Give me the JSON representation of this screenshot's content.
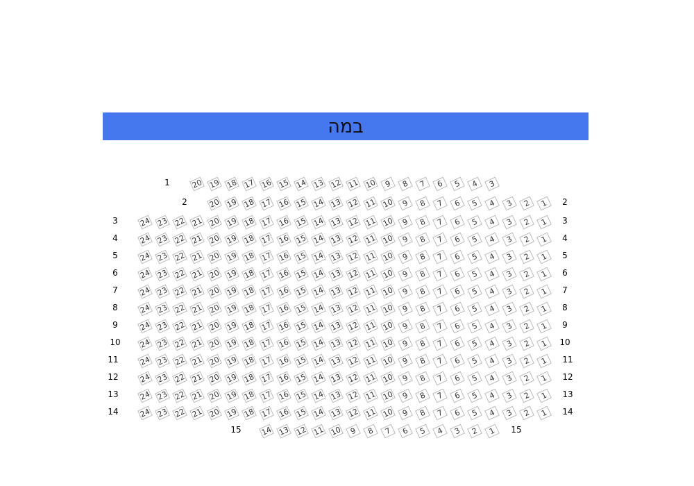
{
  "stage": {
    "label": "במה",
    "color": "#4577EE"
  },
  "rows": [
    {
      "left_label": "1",
      "right_label": "",
      "seats": [
        "20",
        "19",
        "18",
        "17",
        "16",
        "15",
        "14",
        "13",
        "12",
        "11",
        "10",
        "9",
        "8",
        "7",
        "6",
        "5",
        "4",
        "3"
      ]
    },
    {
      "left_label": "2",
      "right_label": "2",
      "seats": [
        "20",
        "19",
        "18",
        "17",
        "16",
        "15",
        "14",
        "13",
        "12",
        "11",
        "10",
        "9",
        "8",
        "7",
        "6",
        "5",
        "4",
        "3",
        "2",
        "1"
      ]
    },
    {
      "left_label": "3",
      "right_label": "3",
      "seats": [
        "24",
        "23",
        "22",
        "21",
        "20",
        "19",
        "18",
        "17",
        "16",
        "15",
        "14",
        "13",
        "12",
        "11",
        "10",
        "9",
        "8",
        "7",
        "6",
        "5",
        "4",
        "3",
        "2",
        "1"
      ]
    },
    {
      "left_label": "4",
      "right_label": "4",
      "seats": [
        "24",
        "23",
        "22",
        "21",
        "20",
        "19",
        "18",
        "17",
        "16",
        "15",
        "14",
        "13",
        "12",
        "11",
        "10",
        "9",
        "8",
        "7",
        "6",
        "5",
        "4",
        "3",
        "2",
        "1"
      ]
    },
    {
      "left_label": "5",
      "right_label": "5",
      "seats": [
        "24",
        "23",
        "22",
        "21",
        "20",
        "19",
        "18",
        "17",
        "16",
        "15",
        "14",
        "13",
        "12",
        "11",
        "10",
        "9",
        "8",
        "7",
        "6",
        "5",
        "4",
        "3",
        "2",
        "1"
      ]
    },
    {
      "left_label": "6",
      "right_label": "6",
      "seats": [
        "24",
        "23",
        "22",
        "21",
        "20",
        "19",
        "18",
        "17",
        "16",
        "15",
        "14",
        "13",
        "12",
        "11",
        "10",
        "9",
        "8",
        "7",
        "6",
        "5",
        "4",
        "3",
        "2",
        "1"
      ]
    },
    {
      "left_label": "7",
      "right_label": "7",
      "seats": [
        "24",
        "23",
        "22",
        "21",
        "20",
        "19",
        "18",
        "17",
        "16",
        "15",
        "14",
        "13",
        "12",
        "11",
        "10",
        "9",
        "8",
        "7",
        "6",
        "5",
        "4",
        "3",
        "2",
        "1"
      ]
    },
    {
      "left_label": "8",
      "right_label": "8",
      "seats": [
        "24",
        "23",
        "22",
        "21",
        "20",
        "19",
        "18",
        "17",
        "16",
        "15",
        "14",
        "13",
        "12",
        "11",
        "10",
        "9",
        "8",
        "7",
        "6",
        "5",
        "4",
        "3",
        "2",
        "1"
      ]
    },
    {
      "left_label": "9",
      "right_label": "9",
      "seats": [
        "24",
        "23",
        "22",
        "21",
        "20",
        "19",
        "18",
        "17",
        "16",
        "15",
        "14",
        "13",
        "12",
        "11",
        "10",
        "9",
        "8",
        "7",
        "6",
        "5",
        "4",
        "3",
        "2",
        "1"
      ]
    },
    {
      "left_label": "10",
      "right_label": "10",
      "seats": [
        "24",
        "23",
        "22",
        "21",
        "20",
        "19",
        "18",
        "17",
        "16",
        "15",
        "14",
        "13",
        "12",
        "11",
        "10",
        "9",
        "8",
        "7",
        "6",
        "5",
        "4",
        "3",
        "2",
        "1"
      ]
    },
    {
      "left_label": "11",
      "right_label": "11",
      "seats": [
        "24",
        "23",
        "22",
        "21",
        "20",
        "19",
        "18",
        "17",
        "16",
        "15",
        "14",
        "13",
        "12",
        "11",
        "10",
        "9",
        "8",
        "7",
        "6",
        "5",
        "4",
        "3",
        "2",
        "1"
      ]
    },
    {
      "left_label": "12",
      "right_label": "12",
      "seats": [
        "24",
        "23",
        "22",
        "21",
        "20",
        "19",
        "18",
        "17",
        "16",
        "15",
        "14",
        "13",
        "12",
        "11",
        "10",
        "9",
        "8",
        "7",
        "6",
        "5",
        "4",
        "3",
        "2",
        "1"
      ]
    },
    {
      "left_label": "13",
      "right_label": "13",
      "seats": [
        "24",
        "23",
        "22",
        "21",
        "20",
        "19",
        "18",
        "17",
        "16",
        "15",
        "14",
        "13",
        "12",
        "11",
        "10",
        "9",
        "8",
        "7",
        "6",
        "5",
        "4",
        "3",
        "2",
        "1"
      ]
    },
    {
      "left_label": "14",
      "right_label": "14",
      "seats": [
        "24",
        "23",
        "22",
        "21",
        "20",
        "19",
        "18",
        "17",
        "16",
        "15",
        "14",
        "13",
        "12",
        "11",
        "10",
        "9",
        "8",
        "7",
        "6",
        "5",
        "4",
        "3",
        "2",
        "1"
      ]
    },
    {
      "left_label": "15",
      "right_label": "15",
      "seats": [
        "14",
        "13",
        "12",
        "11",
        "10",
        "9",
        "8",
        "7",
        "6",
        "5",
        "4",
        "3",
        "2",
        "1"
      ]
    }
  ]
}
